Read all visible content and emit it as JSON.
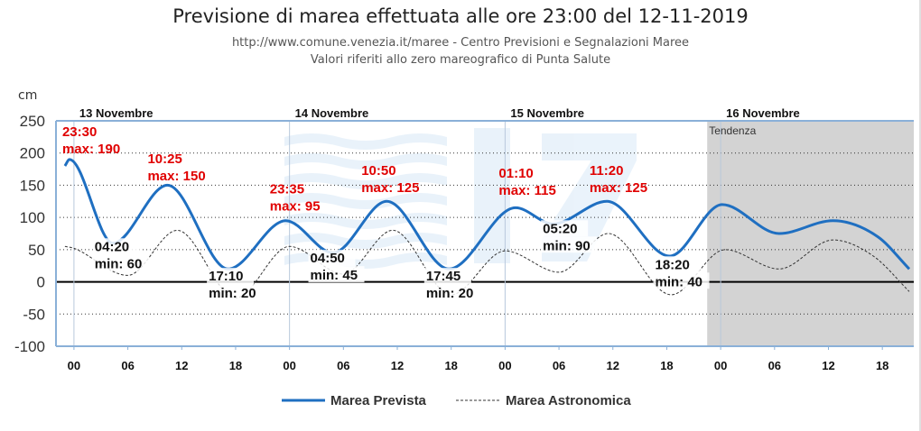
{
  "title": "Previsione di marea effettuata alle ore 23:00 del 12-11-2019",
  "subtitle1": "http://www.comune.venezia.it/maree - Centro Previsioni e Segnalazioni Maree",
  "subtitle2": "Valori riferiti allo zero mareografico di Punta Salute",
  "unit": "cm",
  "chart_data": {
    "type": "line",
    "ylim": [
      -100,
      250
    ],
    "yticks": [
      "250",
      "200",
      "150",
      "100",
      "50",
      "0",
      "-50",
      "-100"
    ],
    "xlim_hours": [
      -2,
      93.5
    ],
    "xticks": [
      "00",
      "06",
      "12",
      "18",
      "00",
      "06",
      "12",
      "18",
      "00",
      "06",
      "12",
      "18",
      "00",
      "06",
      "12",
      "18"
    ],
    "grid": true,
    "days": [
      "13 Novembre",
      "14 Novembre",
      "15 Novembre",
      "16 Novembre"
    ],
    "trend_label": "Tendenza",
    "trend_start_hour": 70.5,
    "legend_position": "bottom",
    "series": [
      {
        "name": "Marea Prevista",
        "color": "#1f6fc1",
        "x": [
          -1,
          -0.5,
          4.33,
          10.42,
          17.17,
          23.58,
          28.83,
          34.83,
          41.75,
          49.17,
          53.33,
          59.33,
          66.33,
          72.17,
          78.5,
          84.5,
          89.5,
          93
        ],
        "y": [
          180,
          190,
          60,
          150,
          20,
          95,
          45,
          125,
          20,
          115,
          90,
          125,
          40,
          120,
          75,
          95,
          70,
          20
        ]
      },
      {
        "name": "Marea Astronomica",
        "color": "#333333",
        "style": "dashed",
        "x": [
          -1,
          0,
          6,
          11.5,
          18,
          24,
          30,
          35.5,
          42,
          48,
          54,
          59.5,
          66.5,
          72.5,
          78.5,
          84.5,
          89,
          93
        ],
        "y": [
          55,
          52,
          10,
          80,
          -25,
          55,
          12,
          80,
          -20,
          48,
          15,
          75,
          -20,
          50,
          20,
          65,
          40,
          -15
        ]
      }
    ],
    "annotations": [
      {
        "time": "23:30",
        "text": "max: 190",
        "kind": "max",
        "x": -1.3,
        "y": 226
      },
      {
        "time": "10:25",
        "text": "max: 150",
        "kind": "max",
        "x": 8.2,
        "y": 184
      },
      {
        "time": "04:20",
        "text": "min: 60",
        "kind": "min",
        "x": 2.3,
        "y": 48
      },
      {
        "time": "17:10",
        "text": "min: 20",
        "kind": "min",
        "x": 15.0,
        "y": 2
      },
      {
        "time": "23:35",
        "text": "max: 95",
        "kind": "max",
        "x": 21.8,
        "y": 137
      },
      {
        "time": "04:50",
        "text": "min: 45",
        "kind": "min",
        "x": 26.3,
        "y": 30
      },
      {
        "time": "10:50",
        "text": "max: 125",
        "kind": "max",
        "x": 32.0,
        "y": 166
      },
      {
        "time": "17:45",
        "text": "min: 20",
        "kind": "min",
        "x": 39.2,
        "y": 2
      },
      {
        "time": "01:10",
        "text": "max: 115",
        "kind": "max",
        "x": 47.3,
        "y": 162
      },
      {
        "time": "05:20",
        "text": "min: 90",
        "kind": "min",
        "x": 52.2,
        "y": 76
      },
      {
        "time": "11:20",
        "text": "max: 125",
        "kind": "max",
        "x": 57.4,
        "y": 166
      },
      {
        "time": "18:20",
        "text": "min: 40",
        "kind": "min",
        "x": 64.7,
        "y": 20
      }
    ]
  }
}
